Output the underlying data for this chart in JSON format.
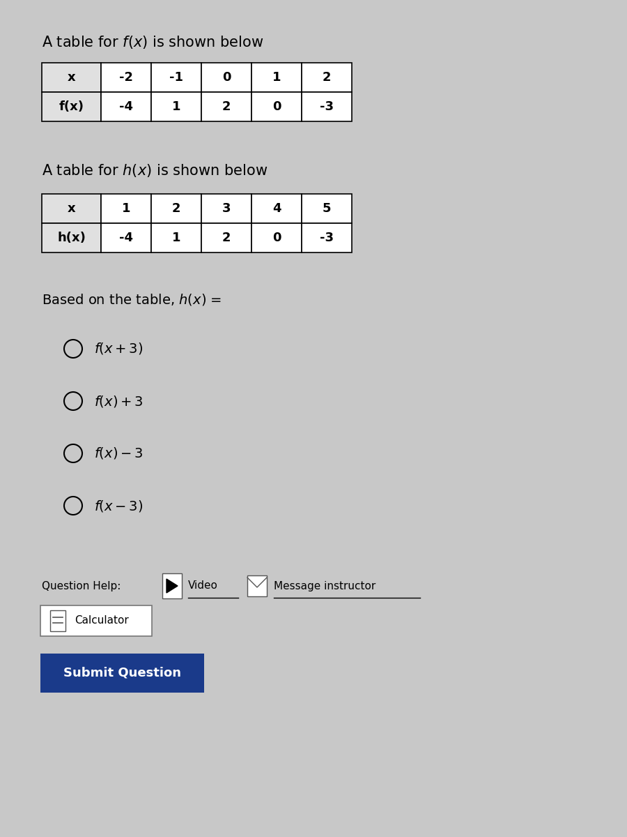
{
  "bg_color": "#c8c8c8",
  "title1": "A table for $f(x)$ is shown below",
  "title2": "A table for $h(x)$ is shown below",
  "fx_x_vals": [
    "-2",
    "-1",
    "0",
    "1",
    "2"
  ],
  "fx_fx_vals": [
    "-4",
    "1",
    "2",
    "0",
    "-3"
  ],
  "hx_x_vals": [
    "1",
    "2",
    "3",
    "4",
    "5"
  ],
  "hx_hx_vals": [
    "-4",
    "1",
    "2",
    "0",
    "-3"
  ],
  "question_text": "Based on the table, $h(x)$ =",
  "options": [
    "$f(x + 3)$",
    "$f(x) + 3$",
    "$f(x) - 3$",
    "$f(x - 3)$"
  ],
  "footer_text": "Question Help:",
  "video_text": "Video",
  "message_text": "Message instructor",
  "calc_text": "Calculator",
  "submit_text": "Submit Question",
  "submit_bg": "#1a3a8a",
  "submit_text_color": "#ffffff"
}
